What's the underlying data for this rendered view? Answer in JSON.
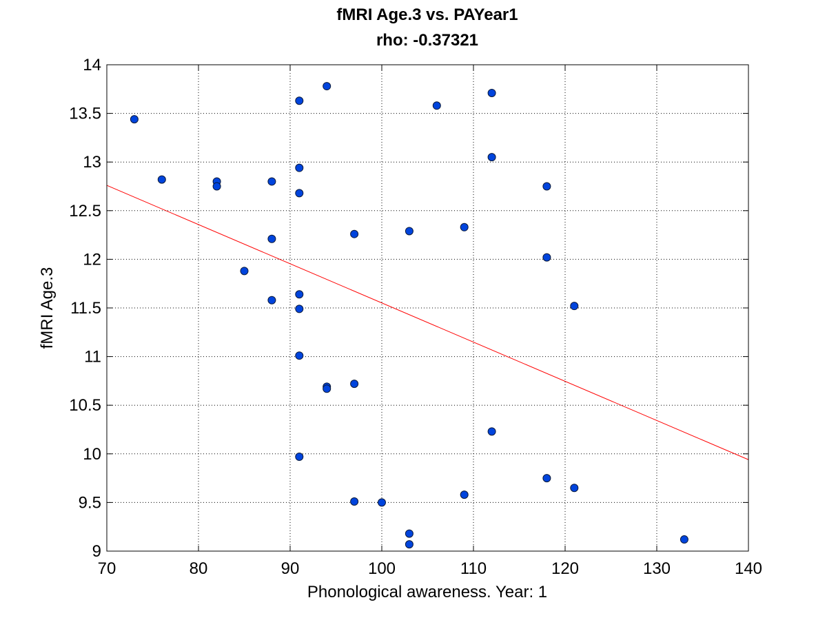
{
  "chart_data": {
    "type": "scatter",
    "title": "fMRI Age.3 vs. PAYear1",
    "subtitle": "rho: -0.37321",
    "xlabel": "Phonological awareness. Year: 1",
    "ylabel": "fMRI Age.3",
    "xlim": [
      70,
      140
    ],
    "ylim": [
      9,
      14
    ],
    "xticks": [
      "70",
      "80",
      "90",
      "100",
      "110",
      "120",
      "130",
      "140"
    ],
    "yticks": [
      "9",
      "9.5",
      "10",
      "10.5",
      "11",
      "11.5",
      "12",
      "12.5",
      "13",
      "13.5",
      "14"
    ],
    "grid": true,
    "marker_color": "#0044dd",
    "fit_line_color": "#ff0000",
    "fit_line": {
      "x": [
        70,
        140
      ],
      "y": [
        12.76,
        9.94
      ]
    },
    "points": [
      {
        "x": 73,
        "y": 13.44
      },
      {
        "x": 76,
        "y": 12.82
      },
      {
        "x": 82,
        "y": 12.8
      },
      {
        "x": 82,
        "y": 12.75
      },
      {
        "x": 85,
        "y": 11.88
      },
      {
        "x": 88,
        "y": 12.8
      },
      {
        "x": 88,
        "y": 12.21
      },
      {
        "x": 88,
        "y": 11.58
      },
      {
        "x": 91,
        "y": 13.63
      },
      {
        "x": 91,
        "y": 12.94
      },
      {
        "x": 91,
        "y": 12.68
      },
      {
        "x": 91,
        "y": 11.64
      },
      {
        "x": 91,
        "y": 11.49
      },
      {
        "x": 91,
        "y": 11.01
      },
      {
        "x": 91,
        "y": 9.97
      },
      {
        "x": 94,
        "y": 13.78
      },
      {
        "x": 94,
        "y": 10.69
      },
      {
        "x": 94,
        "y": 10.67
      },
      {
        "x": 97,
        "y": 12.26
      },
      {
        "x": 97,
        "y": 10.72
      },
      {
        "x": 97,
        "y": 9.51
      },
      {
        "x": 100,
        "y": 9.5
      },
      {
        "x": 103,
        "y": 12.29
      },
      {
        "x": 103,
        "y": 9.18
      },
      {
        "x": 103,
        "y": 9.07
      },
      {
        "x": 106,
        "y": 13.58
      },
      {
        "x": 109,
        "y": 12.33
      },
      {
        "x": 109,
        "y": 9.58
      },
      {
        "x": 112,
        "y": 13.71
      },
      {
        "x": 112,
        "y": 13.05
      },
      {
        "x": 112,
        "y": 10.23
      },
      {
        "x": 118,
        "y": 12.75
      },
      {
        "x": 118,
        "y": 12.02
      },
      {
        "x": 118,
        "y": 9.75
      },
      {
        "x": 121,
        "y": 11.52
      },
      {
        "x": 121,
        "y": 9.65
      },
      {
        "x": 133,
        "y": 9.12
      }
    ]
  }
}
